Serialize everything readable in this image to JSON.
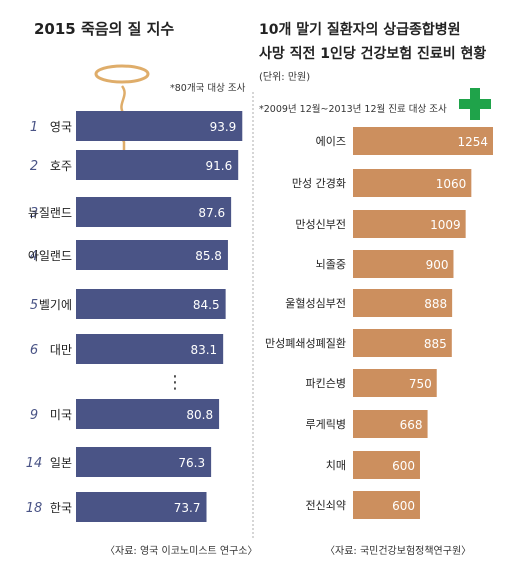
{
  "colors": {
    "left_bar": "#4a5486",
    "right_bar": "#cc8f5e",
    "rank_number": "#4a5486",
    "divider": "#999999",
    "cross": "#1fa34a",
    "halo": "#dfad6a"
  },
  "left": {
    "title": "2015 죽음의 질 지수",
    "note": "*80개국 대상 조사",
    "source": "〈자료: 영국 이코노미스트 연구소〉",
    "ellipsis": "⋮",
    "icon": "halo-icon"
  },
  "right": {
    "title_line1": "10개 말기 질환자의 상급종합병원",
    "title_line2": "사망 직전 1인당 건강보험 진료비 현황",
    "unit": "(단위: 만원)",
    "note": "*2009년 12월~2013년 12월 진료 대상 조사",
    "source": "〈자료: 국민건강보험정책연구원〉",
    "icon": "medical-cross-icon"
  },
  "chart_data": [
    {
      "type": "bar",
      "orientation": "horizontal",
      "title": "2015 죽음의 질 지수",
      "ranks": [
        "1",
        "2",
        "3",
        "4",
        "5",
        "6",
        "9",
        "14",
        "18"
      ],
      "categories": [
        "영국",
        "호주",
        "뉴질랜드",
        "아일랜드",
        "벨기에",
        "대만",
        "미국",
        "일본",
        "한국"
      ],
      "values": [
        93.9,
        91.6,
        87.6,
        85.8,
        84.5,
        83.1,
        80.8,
        76.3,
        73.7
      ],
      "labels": [
        "93.9",
        "91.6",
        "87.6",
        "85.8",
        "84.5",
        "83.1",
        "80.8",
        "76.3",
        "73.7"
      ],
      "xlim": [
        0,
        96
      ]
    },
    {
      "type": "bar",
      "orientation": "horizontal",
      "title": "10개 말기 질환자의 상급종합병원 사망 직전 1인당 건강보험 진료비 현황",
      "unit": "만원",
      "categories": [
        "에이즈",
        "만성 간경화",
        "만성신부전",
        "뇌졸중",
        "울혈성심부전",
        "만성폐쇄성폐질환",
        "파킨슨병",
        "루게릭병",
        "치매",
        "전신쇠약"
      ],
      "values": [
        1254,
        1060,
        1009,
        900,
        888,
        885,
        750,
        668,
        600,
        600
      ],
      "labels": [
        "1254",
        "1060",
        "1009",
        "900",
        "888",
        "885",
        "750",
        "668",
        "600",
        "600"
      ],
      "xlim": [
        0,
        1254
      ]
    }
  ]
}
